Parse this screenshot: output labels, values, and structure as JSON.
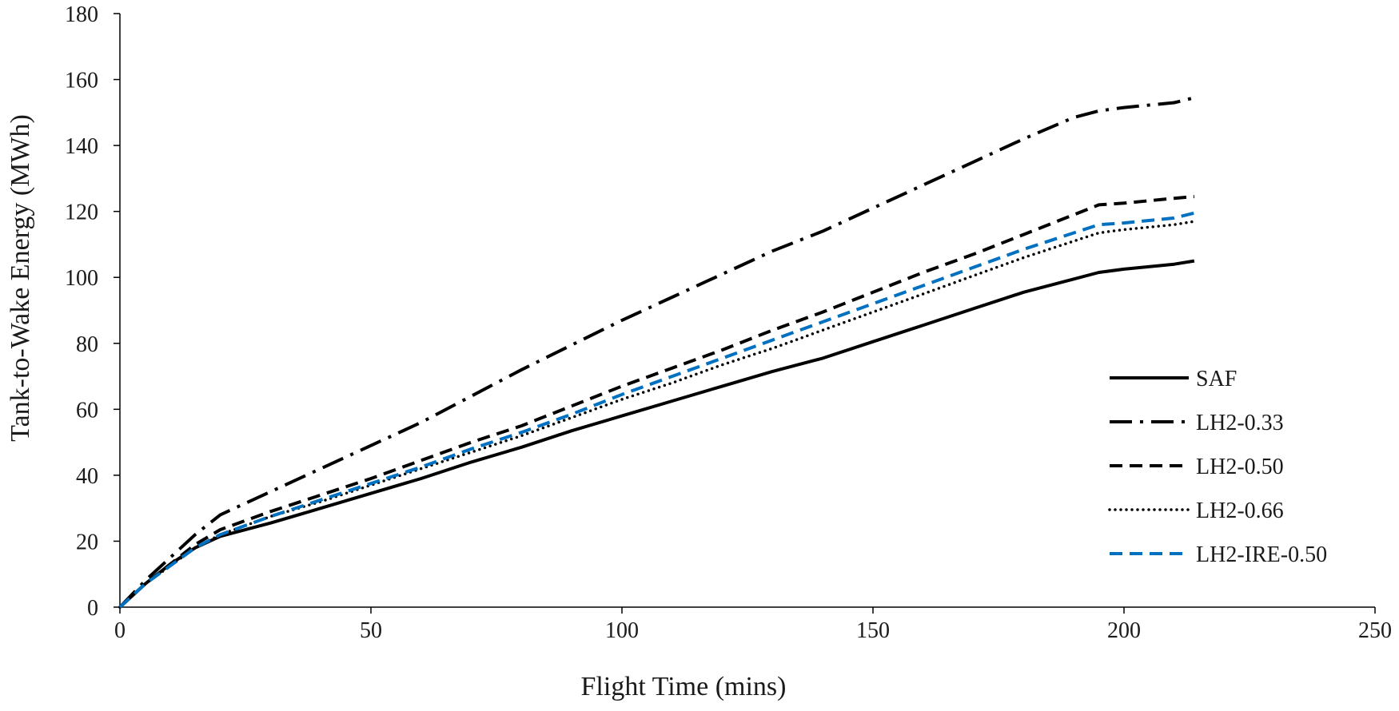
{
  "chart_data": {
    "type": "line",
    "title": "",
    "xlabel": "Flight Time (mins)",
    "ylabel": "Tank-to-Wake Energy (MWh)",
    "xlim": [
      0,
      250
    ],
    "ylim": [
      0,
      180
    ],
    "xticks": [
      0,
      50,
      100,
      150,
      200,
      250
    ],
    "yticks": [
      0,
      20,
      40,
      60,
      80,
      100,
      120,
      140,
      160,
      180
    ],
    "grid": false,
    "legend_position": "right",
    "series": [
      {
        "name": "SAF",
        "color": "#000000",
        "dash": "solid",
        "points": [
          [
            0,
            0
          ],
          [
            5,
            7
          ],
          [
            10,
            13
          ],
          [
            15,
            18
          ],
          [
            20,
            21.5
          ],
          [
            30,
            25.5
          ],
          [
            40,
            30
          ],
          [
            50,
            34.5
          ],
          [
            60,
            39
          ],
          [
            70,
            44
          ],
          [
            80,
            48.5
          ],
          [
            90,
            53.5
          ],
          [
            100,
            58
          ],
          [
            110,
            62.5
          ],
          [
            120,
            67
          ],
          [
            130,
            71.5
          ],
          [
            140,
            75.5
          ],
          [
            150,
            80.5
          ],
          [
            160,
            85.5
          ],
          [
            170,
            90.5
          ],
          [
            180,
            95.5
          ],
          [
            190,
            99.5
          ],
          [
            195,
            101.5
          ],
          [
            200,
            102.5
          ],
          [
            210,
            104
          ],
          [
            214,
            105
          ]
        ]
      },
      {
        "name": "LH2-0.33",
        "color": "#000000",
        "dash": "dashdot",
        "points": [
          [
            0,
            0
          ],
          [
            5,
            8
          ],
          [
            10,
            15
          ],
          [
            15,
            22
          ],
          [
            20,
            28
          ],
          [
            30,
            35
          ],
          [
            40,
            42
          ],
          [
            50,
            49
          ],
          [
            60,
            56
          ],
          [
            70,
            64
          ],
          [
            80,
            72
          ],
          [
            90,
            79.5
          ],
          [
            100,
            87
          ],
          [
            110,
            94
          ],
          [
            120,
            101
          ],
          [
            130,
            108
          ],
          [
            140,
            114
          ],
          [
            150,
            121
          ],
          [
            160,
            128
          ],
          [
            170,
            135
          ],
          [
            180,
            142
          ],
          [
            190,
            148.5
          ],
          [
            195,
            150.5
          ],
          [
            200,
            151.5
          ],
          [
            210,
            153
          ],
          [
            214,
            154.5
          ]
        ]
      },
      {
        "name": "LH2-0.50",
        "color": "#000000",
        "dash": "dashed",
        "points": [
          [
            0,
            0
          ],
          [
            5,
            7
          ],
          [
            10,
            13
          ],
          [
            15,
            19
          ],
          [
            20,
            23.5
          ],
          [
            30,
            29
          ],
          [
            40,
            34
          ],
          [
            50,
            39
          ],
          [
            60,
            44.5
          ],
          [
            70,
            50
          ],
          [
            80,
            55
          ],
          [
            90,
            61
          ],
          [
            100,
            67
          ],
          [
            110,
            72.5
          ],
          [
            120,
            78
          ],
          [
            130,
            84
          ],
          [
            140,
            89.5
          ],
          [
            150,
            95.5
          ],
          [
            160,
            101.5
          ],
          [
            170,
            107
          ],
          [
            180,
            113
          ],
          [
            190,
            119
          ],
          [
            195,
            122
          ],
          [
            200,
            122.5
          ],
          [
            210,
            124
          ],
          [
            214,
            124.5
          ]
        ]
      },
      {
        "name": "LH2-0.66",
        "color": "#000000",
        "dash": "dotted",
        "points": [
          [
            0,
            0
          ],
          [
            5,
            7
          ],
          [
            10,
            12.5
          ],
          [
            15,
            18
          ],
          [
            20,
            22
          ],
          [
            30,
            27.5
          ],
          [
            40,
            32
          ],
          [
            50,
            37
          ],
          [
            60,
            42
          ],
          [
            70,
            47
          ],
          [
            80,
            52
          ],
          [
            90,
            57.5
          ],
          [
            100,
            63
          ],
          [
            110,
            68
          ],
          [
            120,
            73.5
          ],
          [
            130,
            78.5
          ],
          [
            140,
            84
          ],
          [
            150,
            89.5
          ],
          [
            160,
            95
          ],
          [
            170,
            100.5
          ],
          [
            180,
            106
          ],
          [
            190,
            111
          ],
          [
            195,
            113.5
          ],
          [
            200,
            114.5
          ],
          [
            210,
            116
          ],
          [
            214,
            117
          ]
        ]
      },
      {
        "name": "LH2-IRE-0.50",
        "color": "#0070c0",
        "dash": "dashed",
        "points": [
          [
            0,
            0
          ],
          [
            5,
            7
          ],
          [
            10,
            12.5
          ],
          [
            15,
            18
          ],
          [
            20,
            22
          ],
          [
            30,
            27.5
          ],
          [
            40,
            32.5
          ],
          [
            50,
            37.5
          ],
          [
            60,
            42.5
          ],
          [
            70,
            48
          ],
          [
            80,
            53
          ],
          [
            90,
            58.5
          ],
          [
            100,
            64.5
          ],
          [
            110,
            70
          ],
          [
            120,
            75.5
          ],
          [
            130,
            81
          ],
          [
            140,
            86.5
          ],
          [
            150,
            92
          ],
          [
            160,
            97.5
          ],
          [
            170,
            103
          ],
          [
            180,
            108.5
          ],
          [
            190,
            113.5
          ],
          [
            195,
            116
          ],
          [
            200,
            116.5
          ],
          [
            210,
            118
          ],
          [
            214,
            119.5
          ]
        ]
      }
    ]
  }
}
